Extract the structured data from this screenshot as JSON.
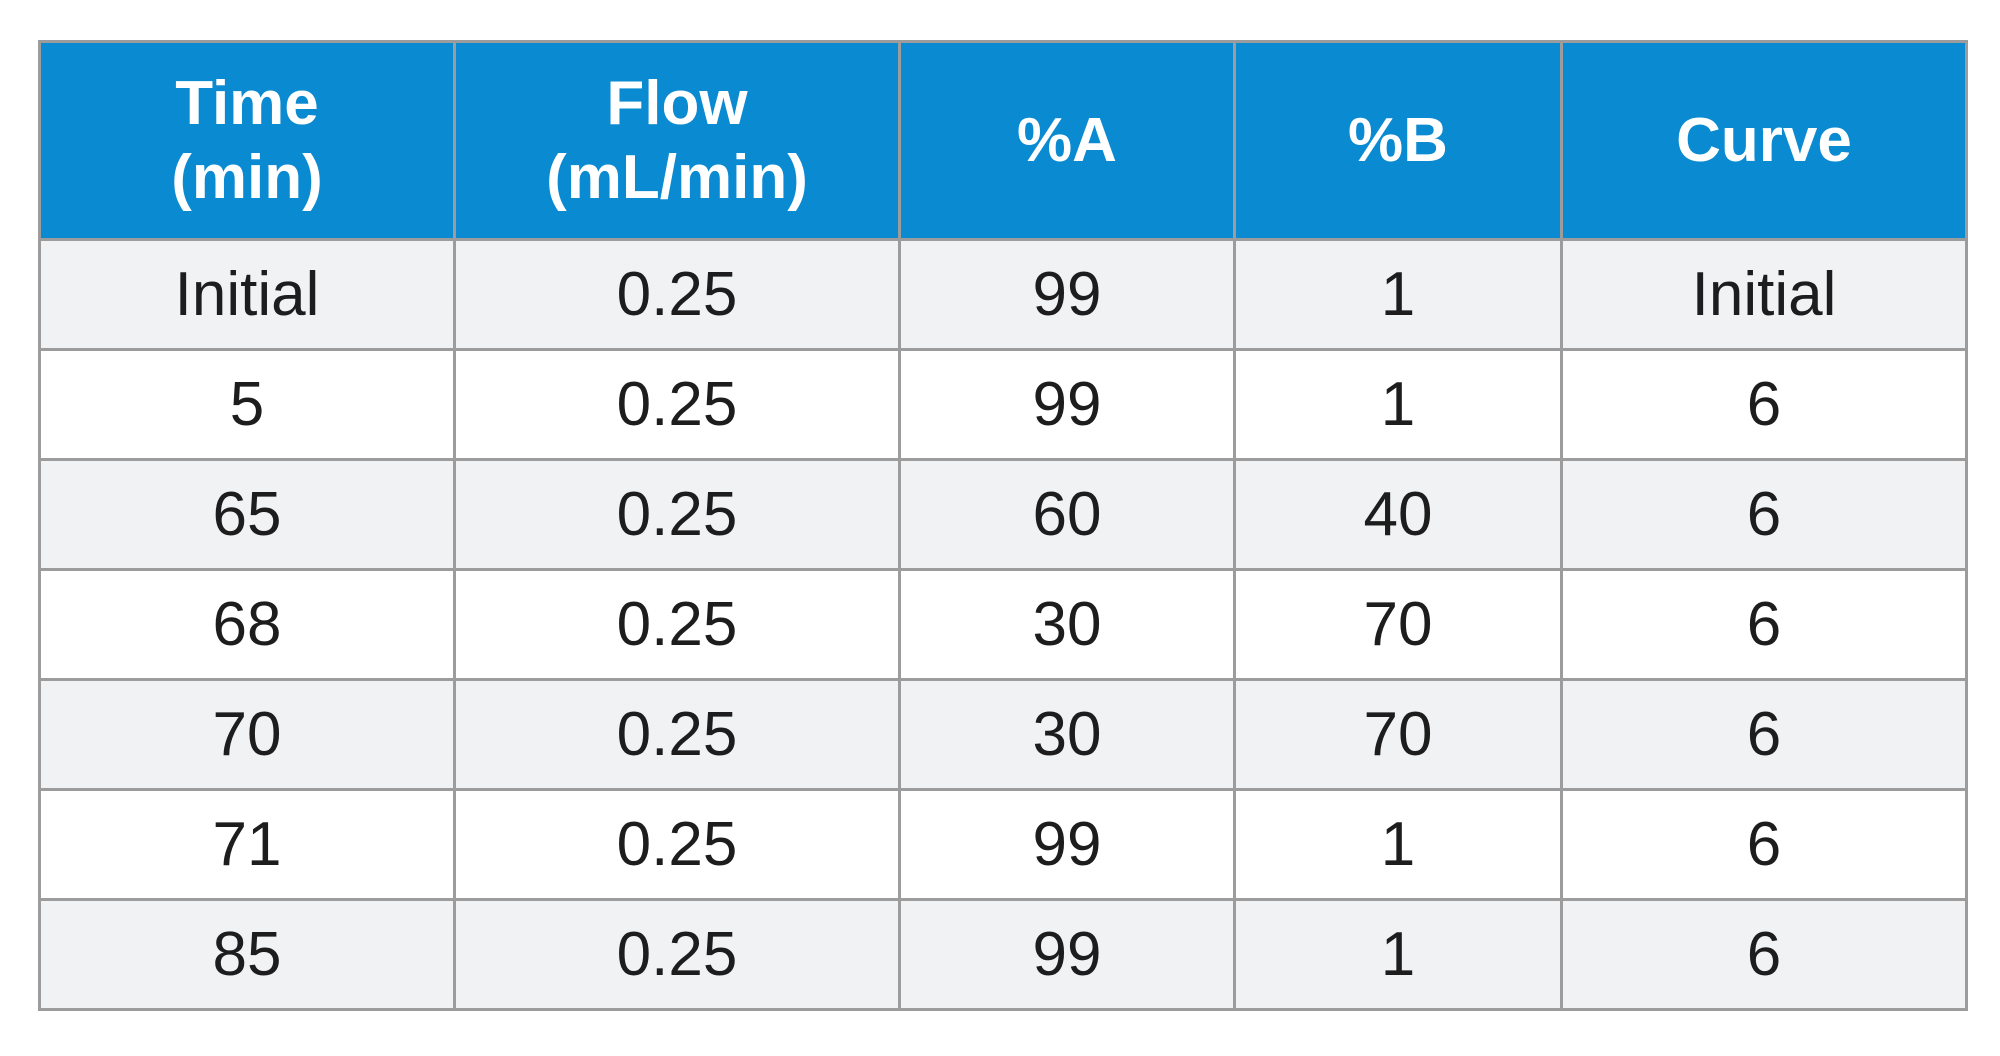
{
  "table": {
    "columns": [
      {
        "line1": "Time",
        "line2": "(min)"
      },
      {
        "line1": "Flow",
        "line2": "(mL/min)"
      },
      {
        "line1": "%A",
        "line2": ""
      },
      {
        "line1": "%B",
        "line2": ""
      },
      {
        "line1": "Curve",
        "line2": ""
      }
    ],
    "rows": [
      [
        "Initial",
        "0.25",
        "99",
        "1",
        "Initial"
      ],
      [
        "5",
        "0.25",
        "99",
        "1",
        "6"
      ],
      [
        "65",
        "0.25",
        "60",
        "40",
        "6"
      ],
      [
        "68",
        "0.25",
        "30",
        "70",
        "6"
      ],
      [
        "70",
        "0.25",
        "30",
        "70",
        "6"
      ],
      [
        "71",
        "0.25",
        "99",
        "1",
        "6"
      ],
      [
        "85",
        "0.25",
        "99",
        "1",
        "6"
      ]
    ],
    "colors": {
      "header_bg": "#0a8ad1",
      "header_text": "#ffffff",
      "shaded_row": "#f1f2f4",
      "border": "#9c9c9c"
    }
  }
}
